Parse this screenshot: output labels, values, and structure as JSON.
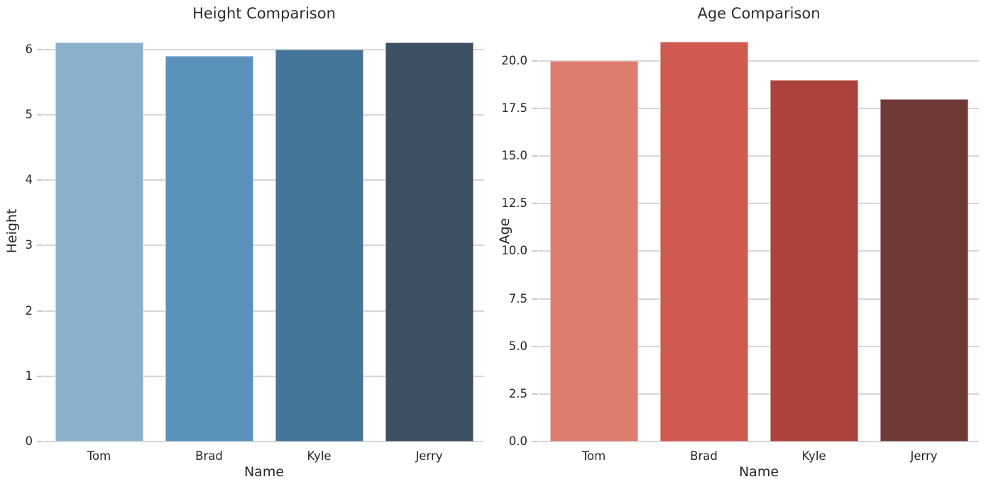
{
  "styles": {
    "background": "#ffffff",
    "grid_color": "#d7d7d7",
    "tick_mark_color": "#cccccc",
    "text_color": "#262626"
  },
  "chart_data": [
    {
      "type": "bar",
      "title": "Height Comparison",
      "xlabel": "Name",
      "ylabel": "Height",
      "categories": [
        "Tom",
        "Brad",
        "Kyle",
        "Jerry"
      ],
      "values": [
        6.1,
        5.9,
        6.0,
        6.1
      ],
      "ylim": [
        0,
        6.43
      ],
      "ytick_values": [
        0,
        1,
        2,
        3,
        4,
        5,
        6
      ],
      "ytick_labels": [
        "0",
        "1",
        "2",
        "3",
        "4",
        "5",
        "6"
      ],
      "bar_colors": [
        "#8bb0ca",
        "#5b92bb",
        "#45769a",
        "#3d5063"
      ],
      "grid": true,
      "legend": "none"
    },
    {
      "type": "bar",
      "title": "Age Comparison",
      "xlabel": "Name",
      "ylabel": "Age",
      "categories": [
        "Tom",
        "Brad",
        "Kyle",
        "Jerry"
      ],
      "values": [
        20,
        21,
        19,
        18
      ],
      "ylim": [
        0,
        22.08
      ],
      "ytick_values": [
        0,
        2.5,
        5,
        7.5,
        10,
        12.5,
        15,
        17.5,
        20
      ],
      "ytick_labels": [
        "0.0",
        "2.5",
        "5.0",
        "7.5",
        "10.0",
        "12.5",
        "15.0",
        "17.5",
        "20.0"
      ],
      "bar_colors": [
        "#dd7d70",
        "#d05a50",
        "#ab433c",
        "#6f3937"
      ],
      "grid": true,
      "legend": "none"
    }
  ]
}
